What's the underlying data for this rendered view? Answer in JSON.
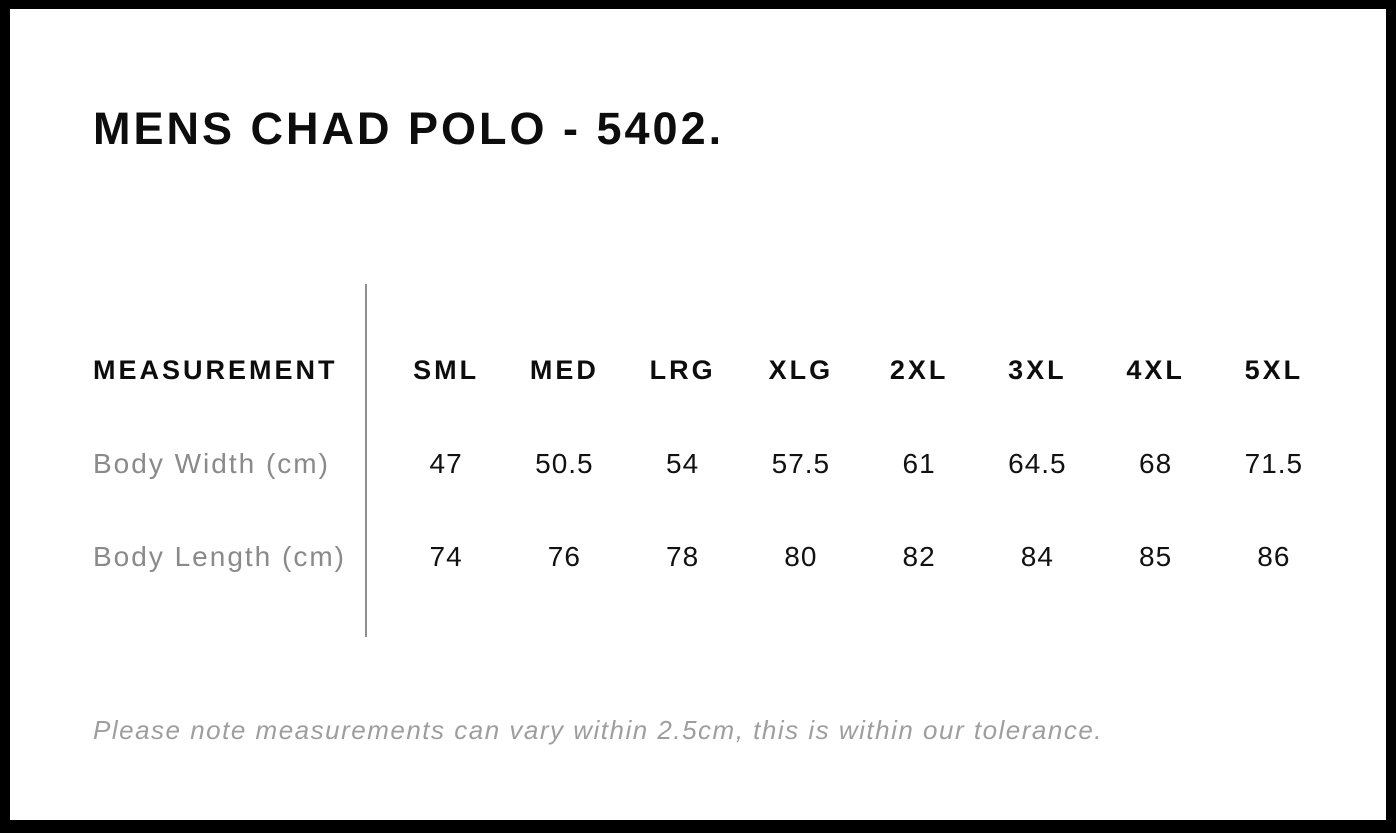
{
  "title": "MENS CHAD POLO - 5402.",
  "table": {
    "header_label": "MEASUREMENT",
    "sizes": [
      "SML",
      "MED",
      "LRG",
      "XLG",
      "2XL",
      "3XL",
      "4XL",
      "5XL"
    ],
    "rows": [
      {
        "label": "Body Width (cm)",
        "values": [
          "47",
          "50.5",
          "54",
          "57.5",
          "61",
          "64.5",
          "68",
          "71.5"
        ]
      },
      {
        "label": "Body Length (cm)",
        "values": [
          "74",
          "76",
          "78",
          "80",
          "82",
          "84",
          "85",
          "86"
        ]
      }
    ]
  },
  "note": "Please note measurements can vary within 2.5cm, this is within our tolerance.",
  "colors": {
    "border": "#000000",
    "background": "#ffffff",
    "heading_text": "#0d0d0d",
    "value_text": "#111111",
    "label_text": "#8a8a8a",
    "note_text": "#9e9e9e",
    "divider": "#8e8e8e"
  },
  "chart_data": {
    "type": "table",
    "title": "MENS CHAD POLO - 5402.",
    "columns": [
      "MEASUREMENT",
      "SML",
      "MED",
      "LRG",
      "XLG",
      "2XL",
      "3XL",
      "4XL",
      "5XL"
    ],
    "rows": [
      [
        "Body Width (cm)",
        47,
        50.5,
        54,
        57.5,
        61,
        64.5,
        68,
        71.5
      ],
      [
        "Body Length (cm)",
        74,
        76,
        78,
        80,
        82,
        84,
        85,
        86
      ]
    ],
    "footnote": "Please note measurements can vary within 2.5cm, this is within our tolerance."
  }
}
